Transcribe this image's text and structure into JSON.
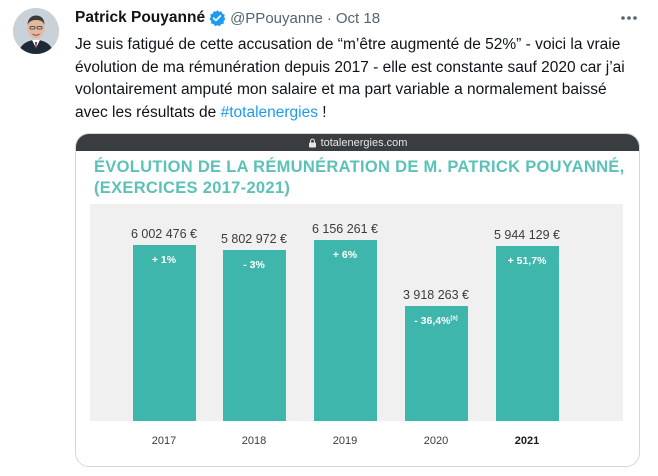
{
  "tweet": {
    "name": "Patrick Pouyanné",
    "handle": "@PPouyanne",
    "dot": "·",
    "date": "Oct 18",
    "text": "Je suis fatigué de cette accusation de “m’être augmenté de 52%” - voici la vraie évolution de ma rémunération depuis 2017 - elle est constante sauf 2020 car j’ai volontairement amputé mon salaire et ma part variable a normalement baissé avec les résultats  de ",
    "hashtag": "#totalenergies",
    "text_end": " !"
  },
  "icons": {
    "verified": "verified-badge-icon",
    "more": "more-dots-icon",
    "lock": "lock-icon"
  },
  "colors": {
    "accent": "#1d9bf0",
    "bar": "#3fb6ac",
    "title": "#5cc1b7"
  },
  "media": {
    "url": "totalenergies.com"
  },
  "chart_data": {
    "type": "bar",
    "title": "ÉVOLUTION DE LA RÉMUNÉRATION DE M. PATRICK POUYANNÉ, (EXERCICES 2017-2021)",
    "categories": [
      "2017",
      "2018",
      "2019",
      "2020",
      "2021"
    ],
    "values": [
      6002476,
      5802972,
      6156261,
      3918263,
      5944129
    ],
    "value_labels": [
      "6 002 476 €",
      "5 802 972 €",
      "6 156 261 €",
      "3 918 263 €",
      "5 944 129 €"
    ],
    "change_labels": [
      "+ 1%",
      "- 3%",
      "+ 6%",
      "- 36,4%",
      "+ 51,7%"
    ],
    "change_notes": [
      "",
      "",
      "",
      "(a)",
      ""
    ],
    "bold_category": "2021",
    "ylim": [
      0,
      7000000
    ],
    "grid": false,
    "legend": "none"
  }
}
